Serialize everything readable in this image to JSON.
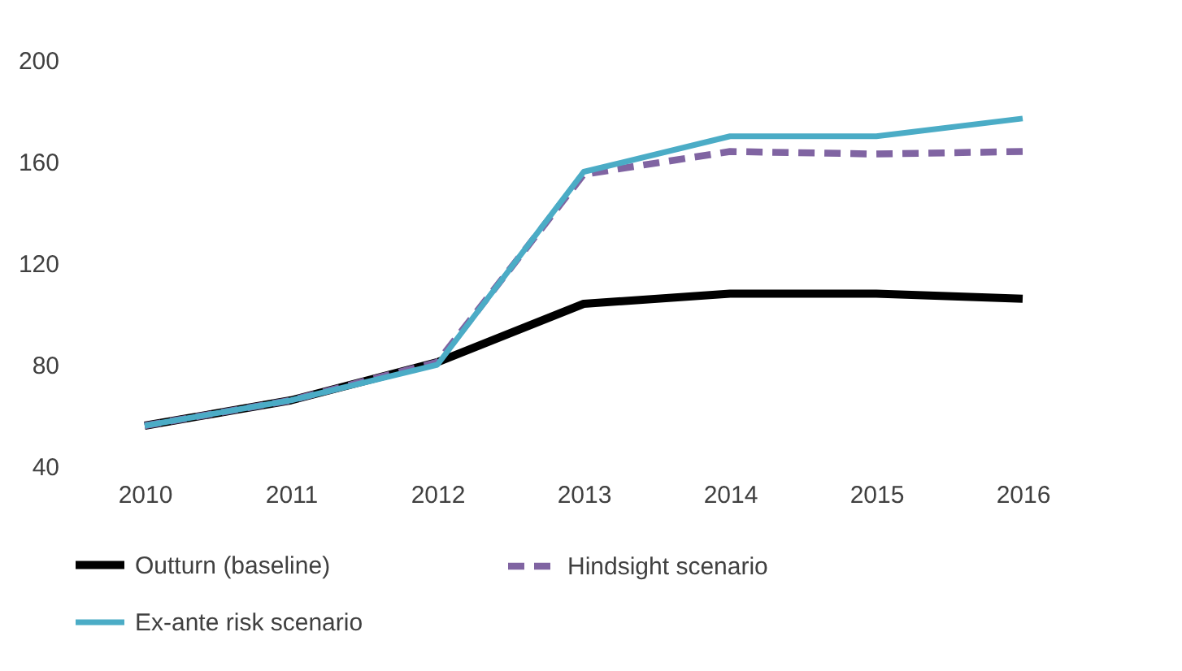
{
  "chart_data": {
    "type": "line",
    "categories": [
      "2010",
      "2011",
      "2012",
      "2013",
      "2014",
      "2015",
      "2016"
    ],
    "series": [
      {
        "name": "Outturn (baseline)",
        "color": "#000000",
        "line_style": "solid",
        "values": [
          56,
          66,
          81,
          104,
          108,
          108,
          106
        ]
      },
      {
        "name": "Hindsight scenario",
        "color": "#8064a2",
        "line_style": "dashed",
        "values": [
          56,
          66,
          81,
          155,
          164,
          163,
          164
        ]
      },
      {
        "name": "Ex-ante risk scenario",
        "color": "#4bacc6",
        "line_style": "solid",
        "values": [
          56,
          66,
          80,
          156,
          170,
          170,
          177
        ]
      }
    ],
    "ylim": [
      40,
      200
    ],
    "yticks": [
      40,
      80,
      120,
      160,
      200
    ],
    "grid": false,
    "legend": "bottom",
    "marker": "none"
  }
}
